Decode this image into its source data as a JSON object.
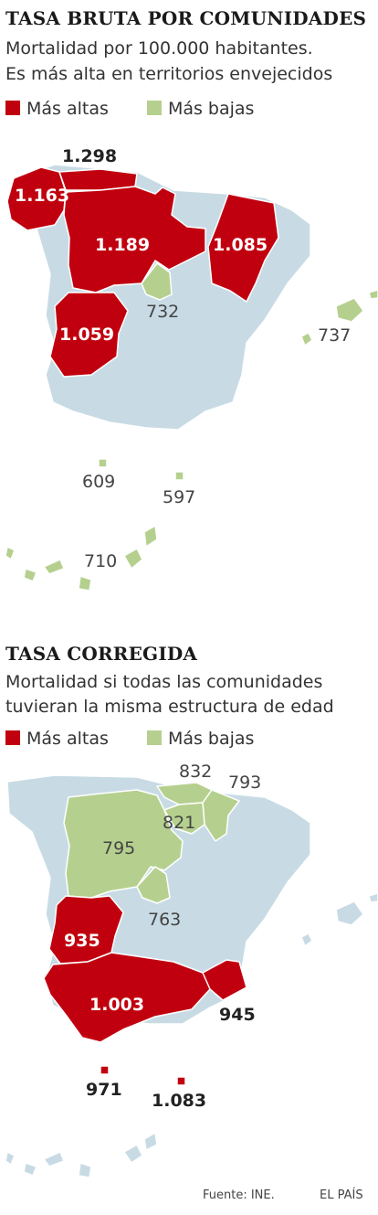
{
  "colors": {
    "high": "#c1000f",
    "low": "#b5d08e",
    "base": "#c8dbe5",
    "border": "#ffffff"
  },
  "map1": {
    "title": "TASA BRUTA POR COMUNIDADES",
    "subtitle_1": "Mortalidad por 100.000 habitantes.",
    "subtitle_2": "Es más alta en territorios envejecidos",
    "legend_high": "Más altas",
    "legend_low": "Más bajas",
    "values": {
      "asturias": "1.298",
      "galicia": "1.163",
      "castilla_leon": "1.189",
      "aragon": "1.085",
      "madrid": "732",
      "extremadura": "1.059",
      "baleares": "737",
      "ceuta": "609",
      "melilla": "597",
      "canarias": "710"
    }
  },
  "map2": {
    "title": "TASA CORREGIDA",
    "subtitle_1": "Mortalidad si todas las comunidades",
    "subtitle_2": "tuvieran la misma estructura de edad",
    "legend_high": "Más altas",
    "legend_low": "Más bajas",
    "values": {
      "pais_vasco": "832",
      "navarra": "793",
      "la_rioja": "821",
      "castilla_leon": "795",
      "madrid": "763",
      "extremadura": "935",
      "andalucia": "1.003",
      "murcia": "945",
      "ceuta": "971",
      "melilla": "1.083"
    }
  },
  "footer": {
    "source": "Fuente: INE.",
    "brand": "EL PAÍS"
  }
}
